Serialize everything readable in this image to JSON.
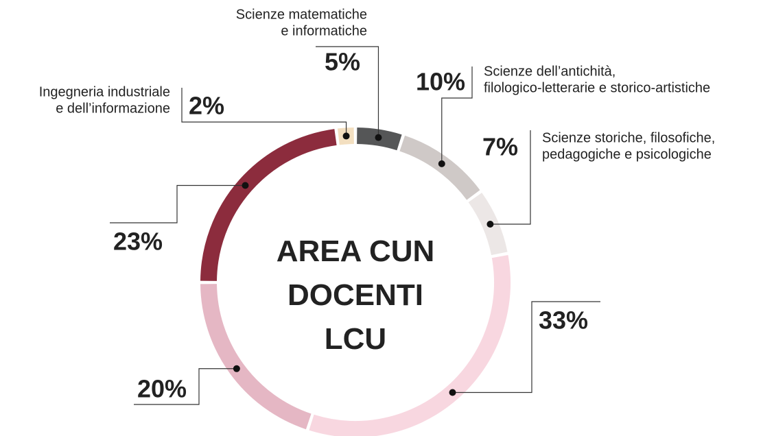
{
  "chart_data": {
    "type": "donut",
    "title": "AREA CUN DOCENTI LCU",
    "categories": [
      [
        "Ingegneria industriale",
        "e dell’informazione"
      ],
      [
        "Scienze matematiche",
        "e informatiche"
      ],
      [
        "Scienze dell’antichità,",
        "filologico-letterarie e storico-artistiche"
      ],
      [
        "Scienze storiche, filosofiche,",
        "pedagogiche e psicologiche"
      ],
      null,
      null,
      null
    ],
    "values": [
      2,
      5,
      10,
      7,
      33,
      20,
      23
    ],
    "value_labels": [
      "2%",
      "5%",
      "10%",
      "7%",
      "33%",
      "20%",
      "23%"
    ],
    "colors": [
      "#f3dfc0",
      "#555657",
      "#cfc9c7",
      "#ece7e6",
      "#f8d7e0",
      "#e5b7c4",
      "#8c2c3d"
    ]
  }
}
